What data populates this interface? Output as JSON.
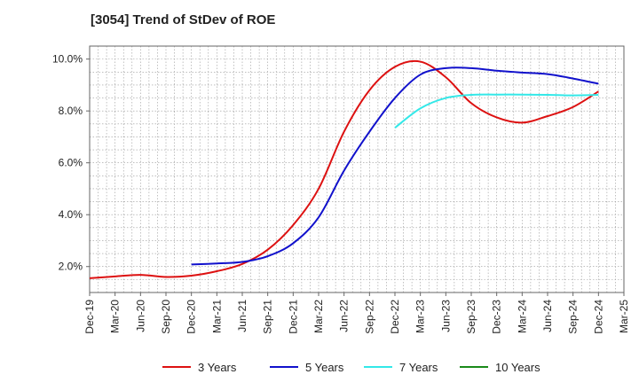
{
  "chart_data": {
    "type": "line",
    "title": "[3054]  Trend of StDev of ROE",
    "xlabel": "",
    "ylabel": "",
    "categories": [
      "Dec-19",
      "Mar-20",
      "Jun-20",
      "Sep-20",
      "Dec-20",
      "Mar-21",
      "Jun-21",
      "Sep-21",
      "Dec-21",
      "Mar-22",
      "Jun-22",
      "Sep-22",
      "Dec-22",
      "Mar-23",
      "Jun-23",
      "Sep-23",
      "Dec-23",
      "Mar-24",
      "Jun-24",
      "Sep-24",
      "Dec-24",
      "Mar-25"
    ],
    "y_tick_labels": [
      "2.0%",
      "4.0%",
      "6.0%",
      "8.0%",
      "10.0%"
    ],
    "y_ticks": [
      2,
      4,
      6,
      8,
      10
    ],
    "ylim": [
      1.0,
      10.5
    ],
    "grid": true,
    "legend_position": "bottom",
    "series": [
      {
        "name": "3 Years",
        "color": "#dd1111",
        "values": [
          1.55,
          1.62,
          1.68,
          1.6,
          1.65,
          1.82,
          2.1,
          2.65,
          3.6,
          5.0,
          7.2,
          8.8,
          9.7,
          9.9,
          9.3,
          8.3,
          7.75,
          7.55,
          7.8,
          8.15,
          8.75,
          null
        ]
      },
      {
        "name": "5 Years",
        "color": "#1111cc",
        "values": [
          null,
          null,
          null,
          null,
          2.08,
          2.12,
          2.18,
          2.4,
          2.9,
          3.9,
          5.7,
          7.2,
          8.5,
          9.4,
          9.65,
          9.65,
          9.55,
          9.48,
          9.42,
          9.25,
          9.05,
          null
        ]
      },
      {
        "name": "7 Years",
        "color": "#33e8e8",
        "values": [
          null,
          null,
          null,
          null,
          null,
          null,
          null,
          null,
          null,
          null,
          null,
          null,
          7.35,
          8.1,
          8.5,
          8.62,
          8.63,
          8.63,
          8.62,
          8.6,
          8.62,
          null
        ]
      },
      {
        "name": "10 Years",
        "color": "#1a8a1a",
        "values": [
          null,
          null,
          null,
          null,
          null,
          null,
          null,
          null,
          null,
          null,
          null,
          null,
          null,
          null,
          null,
          null,
          null,
          null,
          null,
          null,
          null,
          null
        ]
      }
    ]
  }
}
